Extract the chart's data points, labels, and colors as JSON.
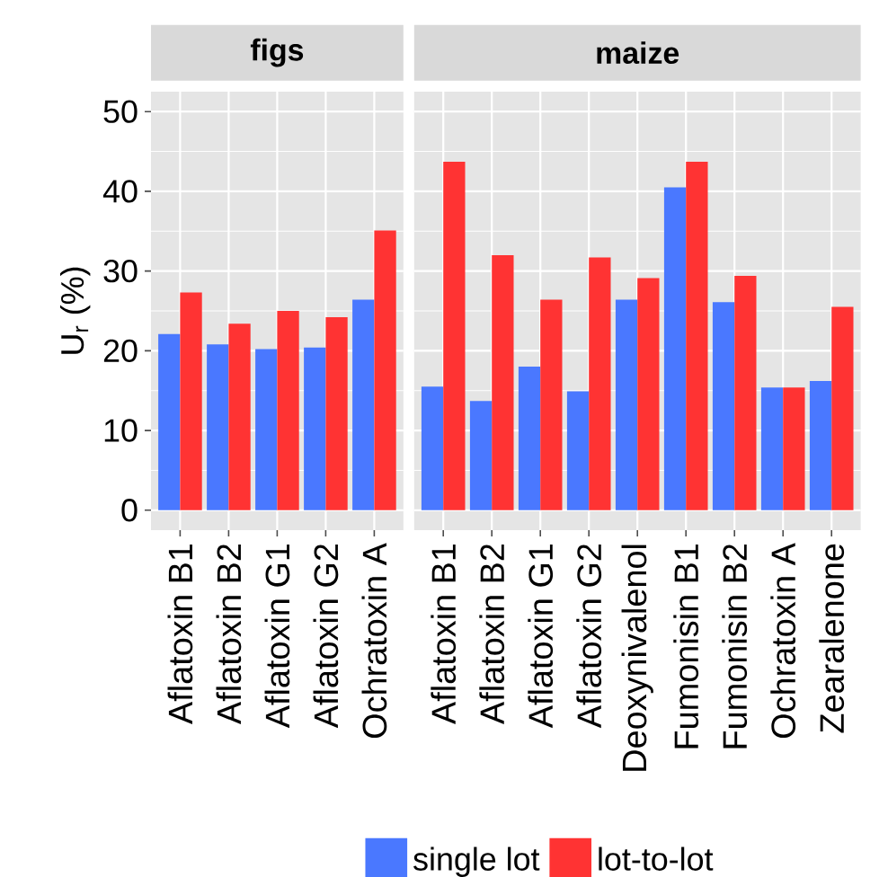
{
  "chart_data": [
    {
      "type": "bar",
      "title": "figs",
      "ylabel": "U$_{r}$ (%)",
      "categories": [
        "Aflatoxin B1",
        "Aflatoxin B2",
        "Aflatoxin G1",
        "Aflatoxin G2",
        "Ochratoxin A"
      ],
      "series": [
        {
          "name": "single lot",
          "color": "#4a78ff",
          "values": [
            22.1,
            20.8,
            20.2,
            20.4,
            26.4
          ]
        },
        {
          "name": "lot-to-lot",
          "color": "#ff3333",
          "values": [
            27.3,
            23.4,
            25.0,
            24.2,
            35.1
          ]
        }
      ],
      "ylim": [
        -2.5,
        52.5
      ],
      "yticks": [
        0,
        10,
        20,
        30,
        40,
        50
      ],
      "grid": true,
      "legend": "bottom"
    },
    {
      "type": "bar",
      "title": "maize",
      "categories": [
        "Aflatoxin B1",
        "Aflatoxin B2",
        "Aflatoxin G1",
        "Aflatoxin G2",
        "Deoxynivalenol",
        "Fumonisin B1",
        "Fumonisin B2",
        "Ochratoxin A",
        "Zearalenone"
      ],
      "series": [
        {
          "name": "single lot",
          "color": "#4a78ff",
          "values": [
            15.5,
            13.7,
            18.0,
            14.9,
            26.4,
            40.5,
            26.1,
            15.4,
            16.2
          ]
        },
        {
          "name": "lot-to-lot",
          "color": "#ff3333",
          "values": [
            43.7,
            32.0,
            26.4,
            31.7,
            29.1,
            43.7,
            29.4,
            15.4,
            25.5
          ]
        }
      ],
      "ylim": [
        -2.5,
        52.5
      ],
      "yticks": [
        0,
        10,
        20,
        30,
        40,
        50
      ],
      "grid": true,
      "tick_labels": "x"
    }
  ]
}
